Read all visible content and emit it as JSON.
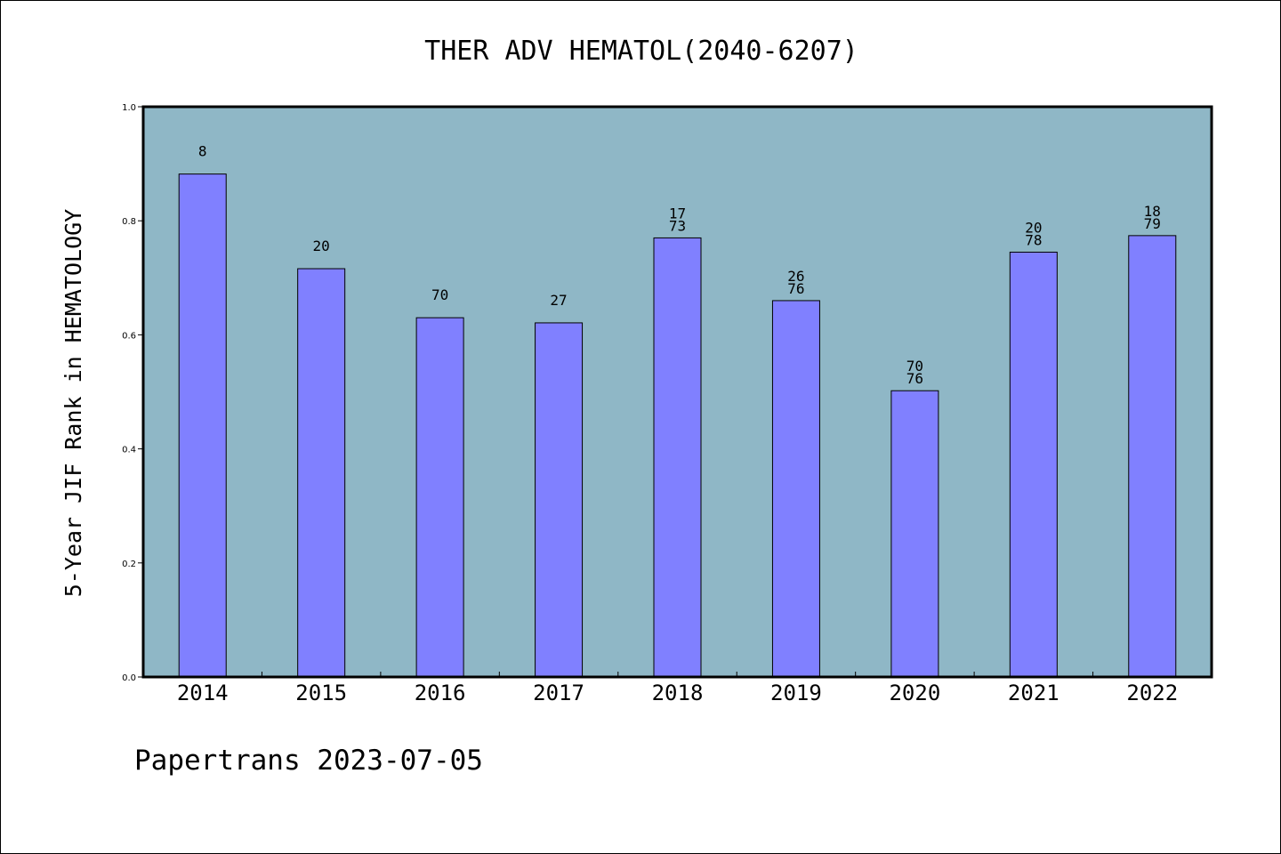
{
  "chart_data": {
    "type": "bar",
    "title": "THER ADV HEMATOL(2040-6207)",
    "xlabel": "",
    "ylabel": "5-Year JIF Rank in HEMATOLOGY",
    "categories": [
      "2014",
      "2015",
      "2016",
      "2017",
      "2018",
      "2019",
      "2020",
      "2021",
      "2022"
    ],
    "values": [
      0.882,
      0.716,
      0.63,
      0.621,
      0.77,
      0.66,
      0.502,
      0.745,
      0.774
    ],
    "bar_labels": [
      [
        "8"
      ],
      [
        "20"
      ],
      [
        "70"
      ],
      [
        "27"
      ],
      [
        "17",
        "73"
      ],
      [
        "26",
        "76"
      ],
      [
        "70",
        "76"
      ],
      [
        "20",
        "78"
      ],
      [
        "18",
        "79"
      ]
    ],
    "ylim": [
      0,
      1.0
    ],
    "yticks": [
      "0.0",
      "0.2",
      "0.4",
      "0.6",
      "0.8",
      "1.0"
    ],
    "grid": false,
    "legend": "none",
    "colors": {
      "plot_background": "#8fb7c6",
      "bar_fill": "#8080ff",
      "bar_edge": "#000000"
    }
  },
  "footer": "Papertrans 2023-07-05"
}
